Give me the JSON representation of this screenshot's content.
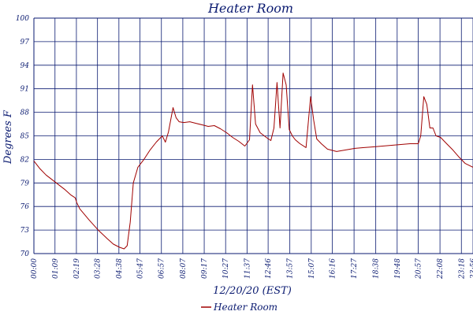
{
  "chart_data": {
    "type": "line",
    "title": "Heater Room",
    "xlabel": "12/20/20 (EST)",
    "ylabel": "Degrees F",
    "y_tick_labels": [
      "100",
      "97",
      "94",
      "91",
      "88",
      "85",
      "82",
      "79",
      "76",
      "73",
      "70"
    ],
    "x_tick_labels": [
      "00:00",
      "01:09",
      "02:19",
      "03:28",
      "04:38",
      "05:47",
      "06:57",
      "08:07",
      "09:17",
      "10:27",
      "11:37",
      "12:46",
      "13:57",
      "15:07",
      "16:16",
      "17:27",
      "18:38",
      "19:48",
      "20:57",
      "22:08",
      "23:18",
      "23:56"
    ],
    "ylim": [
      70,
      100
    ],
    "xlim": [
      "00:00",
      "23:56"
    ],
    "grid": true,
    "legend_position": "bottom-center",
    "colors": {
      "series": "#a00000",
      "grid": "#0a1a70",
      "text": "#0a1a70",
      "background": "#ffffff"
    },
    "series": [
      {
        "name": "Heater Room",
        "x": [
          "00:00",
          "00:20",
          "00:40",
          "01:00",
          "01:20",
          "01:40",
          "02:00",
          "02:15",
          "02:20",
          "02:30",
          "03:00",
          "03:30",
          "04:00",
          "04:20",
          "04:40",
          "04:55",
          "05:05",
          "05:15",
          "05:25",
          "05:40",
          "06:00",
          "06:20",
          "06:40",
          "07:00",
          "07:10",
          "07:20",
          "07:35",
          "07:45",
          "07:55",
          "08:10",
          "08:30",
          "08:50",
          "09:10",
          "09:30",
          "09:50",
          "10:10",
          "10:30",
          "10:50",
          "11:10",
          "11:30",
          "11:45",
          "11:55",
          "12:05",
          "12:20",
          "12:40",
          "12:55",
          "13:05",
          "13:15",
          "13:25",
          "13:35",
          "13:45",
          "13:55",
          "14:05",
          "14:15",
          "14:30",
          "14:50",
          "15:05",
          "15:15",
          "15:25",
          "15:40",
          "16:00",
          "16:30",
          "17:00",
          "17:30",
          "18:00",
          "18:30",
          "19:00",
          "19:30",
          "20:00",
          "20:30",
          "20:57",
          "21:05",
          "21:15",
          "21:25",
          "21:35",
          "21:45",
          "21:55",
          "22:10",
          "22:30",
          "22:50",
          "23:10",
          "23:30",
          "23:56"
        ],
        "values": [
          81.8,
          80.8,
          80.0,
          79.4,
          78.8,
          78.2,
          77.5,
          77.1,
          76.5,
          75.7,
          74.3,
          73.0,
          71.9,
          71.2,
          70.8,
          70.6,
          71.0,
          74.0,
          79.0,
          81.0,
          82.0,
          83.2,
          84.2,
          85.0,
          84.2,
          85.5,
          88.6,
          87.3,
          86.8,
          86.7,
          86.8,
          86.6,
          86.4,
          86.2,
          86.3,
          85.9,
          85.4,
          84.8,
          84.3,
          83.7,
          84.5,
          91.5,
          86.5,
          85.4,
          84.8,
          84.4,
          86.0,
          91.8,
          86.0,
          93.0,
          91.5,
          85.8,
          85.0,
          84.5,
          84.0,
          83.5,
          90.0,
          87.0,
          84.6,
          84.0,
          83.3,
          83.0,
          83.2,
          83.4,
          83.5,
          83.6,
          83.7,
          83.8,
          83.9,
          84.0,
          84.0,
          85.0,
          90.0,
          89.0,
          86.0,
          86.0,
          85.0,
          84.8,
          84.0,
          83.2,
          82.3,
          81.5,
          81.0
        ]
      }
    ]
  }
}
